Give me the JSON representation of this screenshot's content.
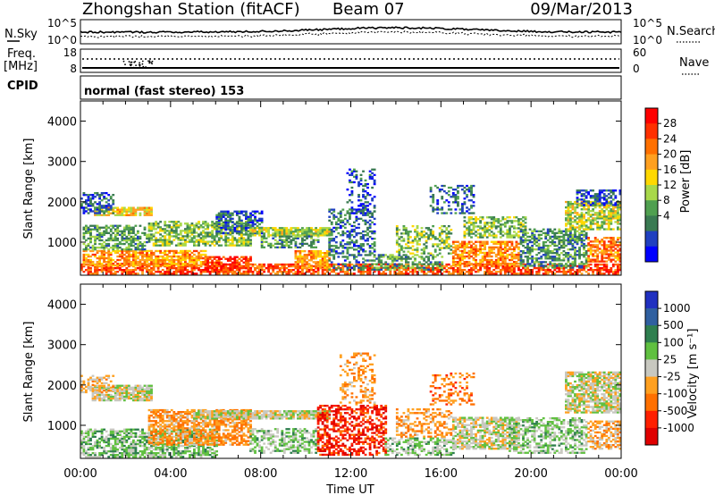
{
  "header": {
    "station": "Zhongshan Station (fitACF)",
    "beam": "Beam 07",
    "date": "09/Mar/2013"
  },
  "top_panels": {
    "nsky": {
      "label": "N.Sky",
      "ticks": [
        "10^5",
        "10^0"
      ]
    },
    "nsearch": {
      "label": "N.Search",
      "ticks": [
        "10^5",
        "10^0"
      ]
    },
    "freq": {
      "label_line1": "Freq.",
      "label_line2": "[MHz]",
      "ticks": [
        "18",
        "8"
      ]
    },
    "nave": {
      "label": "Nave",
      "ticks": [
        "60",
        "0"
      ]
    },
    "cpid": {
      "label": "CPID",
      "text": "normal (fast stereo) 153"
    }
  },
  "chart_data": [
    {
      "type": "heatmap",
      "panel": "power",
      "ylabel": "Slant Range [km]",
      "ylim": [
        180,
        4500
      ],
      "yticks": [
        "1000",
        "2000",
        "3000",
        "4000"
      ],
      "xlim": [
        0,
        24
      ],
      "xticks": [
        "00:00",
        "04:00",
        "08:00",
        "12:00",
        "16:00",
        "20:00",
        "00:00"
      ],
      "colorbar": {
        "label": "Power [dB]",
        "ticks": [
          "28",
          "24",
          "20",
          "16",
          "12",
          "8",
          "4"
        ],
        "colors": [
          "#ff0000",
          "#ff3000",
          "#ff7000",
          "#ffa020",
          "#ffd800",
          "#a8d84a",
          "#50a050",
          "#3a7a52",
          "#2040c0",
          "#0000ff"
        ],
        "range": [
          0,
          30
        ]
      },
      "blobs": [
        {
          "t0": 0.0,
          "t1": 24.0,
          "r0": 200,
          "r1": 450,
          "val": 24,
          "d": 0.7
        },
        {
          "t0": 0.1,
          "t1": 5.5,
          "r0": 400,
          "r1": 800,
          "val": 20,
          "d": 0.75
        },
        {
          "t0": 0.1,
          "t1": 3.0,
          "r0": 800,
          "r1": 1400,
          "val": 10,
          "d": 0.6
        },
        {
          "t0": 0.6,
          "t1": 3.2,
          "r0": 1650,
          "r1": 1850,
          "val": 17,
          "d": 0.75
        },
        {
          "t0": 0.0,
          "t1": 1.5,
          "r0": 1700,
          "r1": 2200,
          "val": 6,
          "d": 0.5
        },
        {
          "t0": 3.0,
          "t1": 7.5,
          "r0": 900,
          "r1": 1500,
          "val": 12,
          "d": 0.65
        },
        {
          "t0": 6.0,
          "t1": 8.0,
          "r0": 1200,
          "r1": 1750,
          "val": 6,
          "d": 0.6
        },
        {
          "t0": 5.5,
          "t1": 7.5,
          "r0": 250,
          "r1": 650,
          "val": 26,
          "d": 0.6
        },
        {
          "t0": 7.5,
          "t1": 11.0,
          "r0": 1150,
          "r1": 1350,
          "val": 14,
          "d": 0.85
        },
        {
          "t0": 8.0,
          "t1": 10.5,
          "r0": 850,
          "r1": 1150,
          "val": 10,
          "d": 0.55
        },
        {
          "t0": 9.5,
          "t1": 11.0,
          "r0": 350,
          "r1": 800,
          "val": 20,
          "d": 0.7
        },
        {
          "t0": 11.0,
          "t1": 13.0,
          "r0": 300,
          "r1": 1800,
          "val": 7,
          "d": 0.45
        },
        {
          "t0": 11.8,
          "t1": 13.0,
          "r0": 1700,
          "r1": 2800,
          "val": 5,
          "d": 0.3
        },
        {
          "t0": 13.0,
          "t1": 16.0,
          "r0": 300,
          "r1": 700,
          "val": 10,
          "d": 0.55
        },
        {
          "t0": 14.0,
          "t1": 16.5,
          "r0": 700,
          "r1": 1400,
          "val": 12,
          "d": 0.45
        },
        {
          "t0": 15.5,
          "t1": 17.5,
          "r0": 1700,
          "r1": 2400,
          "val": 6,
          "d": 0.35
        },
        {
          "t0": 16.5,
          "t1": 19.5,
          "r0": 400,
          "r1": 1000,
          "val": 21,
          "d": 0.7
        },
        {
          "t0": 17.0,
          "t1": 19.8,
          "r0": 1100,
          "r1": 1600,
          "val": 12,
          "d": 0.55
        },
        {
          "t0": 19.5,
          "t1": 22.5,
          "r0": 350,
          "r1": 1300,
          "val": 9,
          "d": 0.6
        },
        {
          "t0": 21.5,
          "t1": 24.0,
          "r0": 1300,
          "r1": 2000,
          "val": 14,
          "d": 0.7
        },
        {
          "t0": 22.0,
          "t1": 24.0,
          "r0": 1900,
          "r1": 2300,
          "val": 5,
          "d": 0.55
        },
        {
          "t0": 22.5,
          "t1": 24.0,
          "r0": 500,
          "r1": 1100,
          "val": 22,
          "d": 0.65
        }
      ]
    },
    {
      "type": "heatmap",
      "panel": "velocity",
      "ylabel": "Slant Range [km]",
      "ylim": [
        180,
        4500
      ],
      "yticks": [
        "1000",
        "2000",
        "3000",
        "4000"
      ],
      "xlim": [
        0,
        24
      ],
      "xticks": [
        "00:00",
        "04:00",
        "08:00",
        "12:00",
        "16:00",
        "20:00",
        "00:00"
      ],
      "xlabel": "Time UT",
      "colorbar": {
        "label": "Velocity [m s⁻¹]",
        "ticks": [
          "1000",
          "500",
          "100",
          "25",
          "-25",
          "-100",
          "-500",
          "-1000"
        ],
        "colors": [
          "#2030c0",
          "#3060a0",
          "#2f7f4f",
          "#60c040",
          "#c8c8c0",
          "#ffa020",
          "#ff7000",
          "#ff2000",
          "#e00000"
        ],
        "range": [
          -1000,
          1000
        ]
      },
      "blobs": [
        {
          "t0": 0.0,
          "t1": 6.0,
          "r0": 200,
          "r1": 900,
          "val": 200,
          "d": 0.65
        },
        {
          "t0": 0.5,
          "t1": 3.2,
          "r0": 1600,
          "r1": 2000,
          "val": 0,
          "d": 0.85
        },
        {
          "t0": 0.0,
          "t1": 1.5,
          "r0": 1800,
          "r1": 2250,
          "val": -150,
          "d": 0.45
        },
        {
          "t0": 3.0,
          "t1": 7.5,
          "r0": 500,
          "r1": 1400,
          "val": -300,
          "d": 0.65
        },
        {
          "t0": 5.0,
          "t1": 11.0,
          "r0": 1150,
          "r1": 1350,
          "val": 0,
          "d": 0.85
        },
        {
          "t0": 7.5,
          "t1": 10.5,
          "r0": 300,
          "r1": 900,
          "val": 150,
          "d": 0.55
        },
        {
          "t0": 10.5,
          "t1": 13.5,
          "r0": 250,
          "r1": 1500,
          "val": -700,
          "d": 0.55
        },
        {
          "t0": 11.5,
          "t1": 13.0,
          "r0": 1500,
          "r1": 2800,
          "val": -300,
          "d": 0.3
        },
        {
          "t0": 13.5,
          "t1": 16.5,
          "r0": 250,
          "r1": 700,
          "val": 150,
          "d": 0.55
        },
        {
          "t0": 14.0,
          "t1": 16.5,
          "r0": 700,
          "r1": 1400,
          "val": -300,
          "d": 0.4
        },
        {
          "t0": 15.5,
          "t1": 17.5,
          "r0": 1500,
          "r1": 2300,
          "val": -400,
          "d": 0.3
        },
        {
          "t0": 16.5,
          "t1": 19.5,
          "r0": 400,
          "r1": 1200,
          "val": 0,
          "d": 0.7
        },
        {
          "t0": 19.0,
          "t1": 22.5,
          "r0": 300,
          "r1": 1200,
          "val": 150,
          "d": 0.55
        },
        {
          "t0": 21.5,
          "t1": 24.0,
          "r0": 1300,
          "r1": 2300,
          "val": 0,
          "d": 0.75
        },
        {
          "t0": 22.5,
          "t1": 24.0,
          "r0": 400,
          "r1": 1100,
          "val": -200,
          "d": 0.6
        }
      ]
    }
  ]
}
